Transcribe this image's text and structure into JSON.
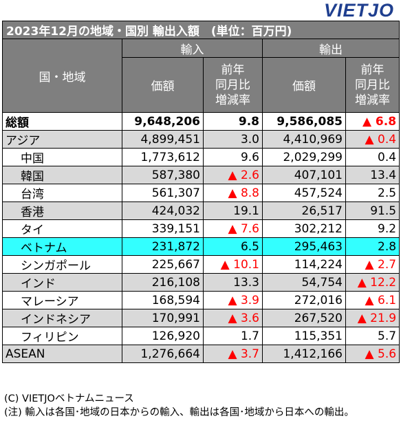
{
  "brand": "VIETJO",
  "table": {
    "title": "2023年12月の地域・国別 輸出入額　(単位：百万円)",
    "header": {
      "region": "国・地域",
      "import": "輸入",
      "export": "輸出",
      "value": "価額",
      "yoy": [
        "前年",
        "同月比",
        "増減率"
      ]
    },
    "rows": [
      {
        "name": "総額",
        "imp": "9,648,206",
        "impPct": "9.8",
        "impNeg": false,
        "exp": "9,586,085",
        "expPct": "▲ 6.8",
        "expNeg": true
      },
      {
        "name": "アジア",
        "imp": "4,899,451",
        "impPct": "3.0",
        "impNeg": false,
        "exp": "4,410,969",
        "expPct": "▲ 0.4",
        "expNeg": true
      },
      {
        "name": "中国",
        "imp": "1,773,612",
        "impPct": "9.6",
        "impNeg": false,
        "exp": "2,029,299",
        "expPct": "0.4",
        "expNeg": false
      },
      {
        "name": "韓国",
        "imp": "587,380",
        "impPct": "▲ 2.6",
        "impNeg": true,
        "exp": "407,101",
        "expPct": "13.4",
        "expNeg": false
      },
      {
        "name": "台湾",
        "imp": "561,307",
        "impPct": "▲ 8.8",
        "impNeg": true,
        "exp": "457,524",
        "expPct": "2.5",
        "expNeg": false
      },
      {
        "name": "香港",
        "imp": "424,032",
        "impPct": "19.1",
        "impNeg": false,
        "exp": "26,517",
        "expPct": "91.5",
        "expNeg": false
      },
      {
        "name": "タイ",
        "imp": "339,151",
        "impPct": "▲ 7.6",
        "impNeg": true,
        "exp": "302,212",
        "expPct": "9.2",
        "expNeg": false
      },
      {
        "name": "ベトナム",
        "imp": "231,872",
        "impPct": "6.5",
        "impNeg": false,
        "exp": "295,463",
        "expPct": "2.8",
        "expNeg": false
      },
      {
        "name": "シンガポール",
        "imp": "225,667",
        "impPct": "▲ 10.1",
        "impNeg": true,
        "exp": "114,224",
        "expPct": "▲ 2.7",
        "expNeg": true
      },
      {
        "name": "インド",
        "imp": "216,108",
        "impPct": "13.3",
        "impNeg": false,
        "exp": "54,754",
        "expPct": "▲ 12.2",
        "expNeg": true
      },
      {
        "name": "マレーシア",
        "imp": "168,594",
        "impPct": "▲ 3.9",
        "impNeg": true,
        "exp": "272,016",
        "expPct": "▲ 6.1",
        "expNeg": true
      },
      {
        "name": "インドネシア",
        "imp": "170,991",
        "impPct": "▲ 3.6",
        "impNeg": true,
        "exp": "267,520",
        "expPct": "▲ 21.9",
        "expNeg": true
      },
      {
        "name": "フィリピン",
        "imp": "126,920",
        "impPct": "1.7",
        "impNeg": false,
        "exp": "115,351",
        "expPct": "5.7",
        "expNeg": false
      },
      {
        "name": "ASEAN",
        "imp": "1,276,664",
        "impPct": "▲ 3.7",
        "impNeg": true,
        "exp": "1,412,166",
        "expPct": "▲ 5.6",
        "expNeg": true
      }
    ]
  },
  "footer": {
    "credit": "(C) VIETJOベトナムニュース",
    "note": "(注) 輸入は各国･地域の日本からの輸入、輸出は各国･地域から日本への輸出。"
  },
  "colors": {
    "header_gray": "#7f7f7f",
    "row_gray": "#d9d9d9",
    "vietnam_highlight": "#33ffff",
    "negative": "#ff0000",
    "logo_blue": "#1f3f8f"
  }
}
